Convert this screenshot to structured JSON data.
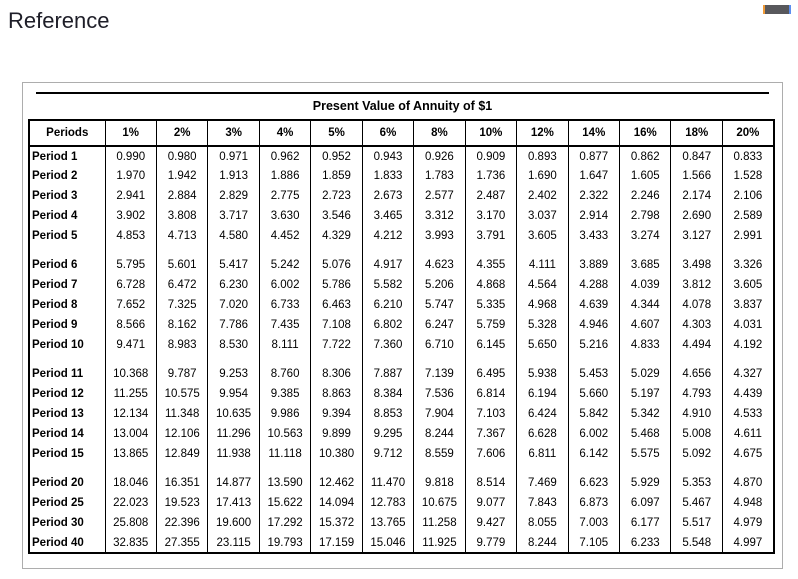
{
  "page": {
    "heading": "Reference"
  },
  "window_controls": {
    "bar": "minimized-window-bar"
  },
  "colors": {
    "text": "#000000",
    "heading_text": "#1e1e28",
    "card_border": "#adadad",
    "table_rule": "#000000",
    "winbar_fill": "#58585c",
    "winbar_left_accent": "#f09a36",
    "winbar_right_accent": "#5b8ef0"
  },
  "table": {
    "title": "Present Value of Annuity of $1",
    "columns": [
      "Periods",
      "1%",
      "2%",
      "3%",
      "4%",
      "5%",
      "6%",
      "8%",
      "10%",
      "12%",
      "14%",
      "16%",
      "18%",
      "20%"
    ],
    "groups": [
      {
        "rows": [
          {
            "label": "Period 1",
            "values": [
              "0.990",
              "0.980",
              "0.971",
              "0.962",
              "0.952",
              "0.943",
              "0.926",
              "0.909",
              "0.893",
              "0.877",
              "0.862",
              "0.847",
              "0.833"
            ]
          },
          {
            "label": "Period 2",
            "values": [
              "1.970",
              "1.942",
              "1.913",
              "1.886",
              "1.859",
              "1.833",
              "1.783",
              "1.736",
              "1.690",
              "1.647",
              "1.605",
              "1.566",
              "1.528"
            ]
          },
          {
            "label": "Period 3",
            "values": [
              "2.941",
              "2.884",
              "2.829",
              "2.775",
              "2.723",
              "2.673",
              "2.577",
              "2.487",
              "2.402",
              "2.322",
              "2.246",
              "2.174",
              "2.106"
            ]
          },
          {
            "label": "Period 4",
            "values": [
              "3.902",
              "3.808",
              "3.717",
              "3.630",
              "3.546",
              "3.465",
              "3.312",
              "3.170",
              "3.037",
              "2.914",
              "2.798",
              "2.690",
              "2.589"
            ]
          },
          {
            "label": "Period 5",
            "values": [
              "4.853",
              "4.713",
              "4.580",
              "4.452",
              "4.329",
              "4.212",
              "3.993",
              "3.791",
              "3.605",
              "3.433",
              "3.274",
              "3.127",
              "2.991"
            ]
          }
        ]
      },
      {
        "rows": [
          {
            "label": "Period 6",
            "values": [
              "5.795",
              "5.601",
              "5.417",
              "5.242",
              "5.076",
              "4.917",
              "4.623",
              "4.355",
              "4.111",
              "3.889",
              "3.685",
              "3.498",
              "3.326"
            ]
          },
          {
            "label": "Period 7",
            "values": [
              "6.728",
              "6.472",
              "6.230",
              "6.002",
              "5.786",
              "5.582",
              "5.206",
              "4.868",
              "4.564",
              "4.288",
              "4.039",
              "3.812",
              "3.605"
            ]
          },
          {
            "label": "Period 8",
            "values": [
              "7.652",
              "7.325",
              "7.020",
              "6.733",
              "6.463",
              "6.210",
              "5.747",
              "5.335",
              "4.968",
              "4.639",
              "4.344",
              "4.078",
              "3.837"
            ]
          },
          {
            "label": "Period 9",
            "values": [
              "8.566",
              "8.162",
              "7.786",
              "7.435",
              "7.108",
              "6.802",
              "6.247",
              "5.759",
              "5.328",
              "4.946",
              "4.607",
              "4.303",
              "4.031"
            ]
          },
          {
            "label": "Period 10",
            "values": [
              "9.471",
              "8.983",
              "8.530",
              "8.111",
              "7.722",
              "7.360",
              "6.710",
              "6.145",
              "5.650",
              "5.216",
              "4.833",
              "4.494",
              "4.192"
            ]
          }
        ]
      },
      {
        "rows": [
          {
            "label": "Period 11",
            "values": [
              "10.368",
              "9.787",
              "9.253",
              "8.760",
              "8.306",
              "7.887",
              "7.139",
              "6.495",
              "5.938",
              "5.453",
              "5.029",
              "4.656",
              "4.327"
            ]
          },
          {
            "label": "Period 12",
            "values": [
              "11.255",
              "10.575",
              "9.954",
              "9.385",
              "8.863",
              "8.384",
              "7.536",
              "6.814",
              "6.194",
              "5.660",
              "5.197",
              "4.793",
              "4.439"
            ]
          },
          {
            "label": "Period 13",
            "values": [
              "12.134",
              "11.348",
              "10.635",
              "9.986",
              "9.394",
              "8.853",
              "7.904",
              "7.103",
              "6.424",
              "5.842",
              "5.342",
              "4.910",
              "4.533"
            ]
          },
          {
            "label": "Period 14",
            "values": [
              "13.004",
              "12.106",
              "11.296",
              "10.563",
              "9.899",
              "9.295",
              "8.244",
              "7.367",
              "6.628",
              "6.002",
              "5.468",
              "5.008",
              "4.611"
            ]
          },
          {
            "label": "Period 15",
            "values": [
              "13.865",
              "12.849",
              "11.938",
              "11.118",
              "10.380",
              "9.712",
              "8.559",
              "7.606",
              "6.811",
              "6.142",
              "5.575",
              "5.092",
              "4.675"
            ]
          }
        ]
      },
      {
        "rows": [
          {
            "label": "Period 20",
            "values": [
              "18.046",
              "16.351",
              "14.877",
              "13.590",
              "12.462",
              "11.470",
              "9.818",
              "8.514",
              "7.469",
              "6.623",
              "5.929",
              "5.353",
              "4.870"
            ]
          },
          {
            "label": "Period 25",
            "values": [
              "22.023",
              "19.523",
              "17.413",
              "15.622",
              "14.094",
              "12.783",
              "10.675",
              "9.077",
              "7.843",
              "6.873",
              "6.097",
              "5.467",
              "4.948"
            ]
          },
          {
            "label": "Period 30",
            "values": [
              "25.808",
              "22.396",
              "19.600",
              "17.292",
              "15.372",
              "13.765",
              "11.258",
              "9.427",
              "8.055",
              "7.003",
              "6.177",
              "5.517",
              "4.979"
            ]
          },
          {
            "label": "Period 40",
            "values": [
              "32.835",
              "27.355",
              "23.115",
              "19.793",
              "17.159",
              "15.046",
              "11.925",
              "9.779",
              "8.244",
              "7.105",
              "6.233",
              "5.548",
              "4.997"
            ]
          }
        ]
      }
    ]
  }
}
